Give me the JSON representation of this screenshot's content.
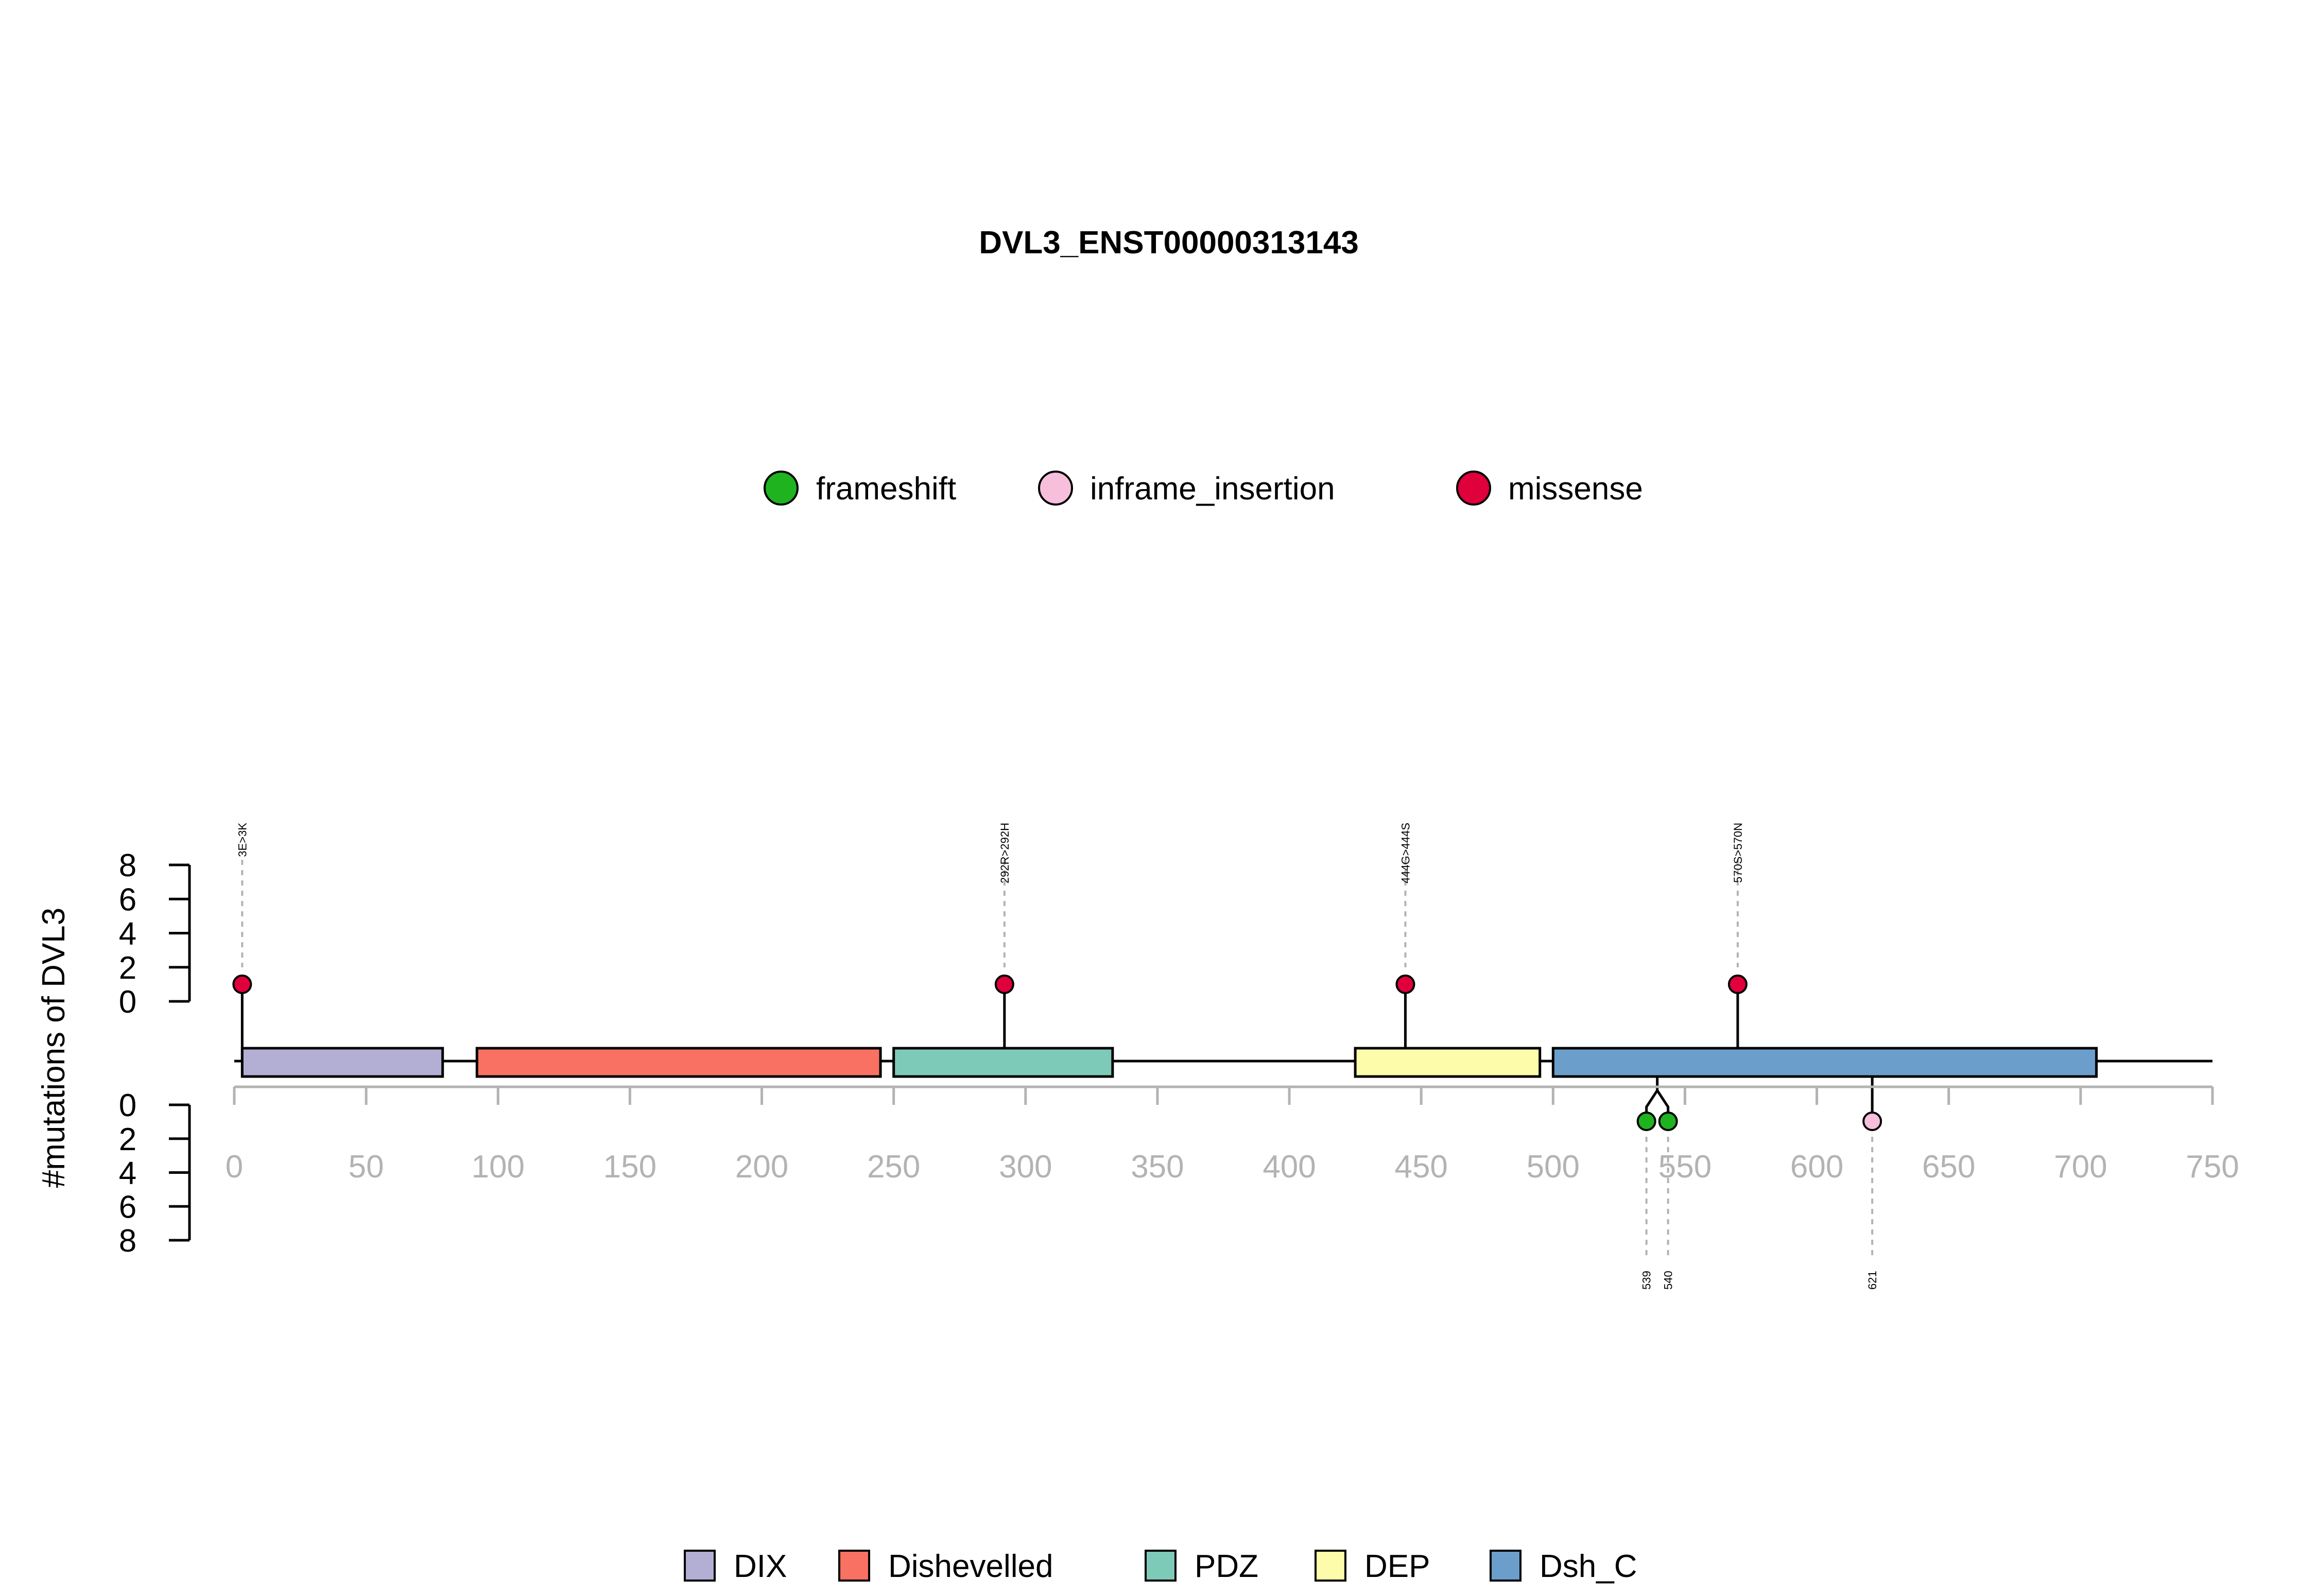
{
  "chart_data": {
    "type": "lollipop",
    "title": "DVL3_ENST00000313143",
    "ylabel": "#mutations of DVL3",
    "xlim": [
      0,
      750
    ],
    "x_ticks": [
      0,
      50,
      100,
      150,
      200,
      250,
      300,
      350,
      400,
      450,
      500,
      550,
      600,
      650,
      700,
      750
    ],
    "y_ticks_top": [
      0,
      2,
      4,
      6,
      8
    ],
    "y_ticks_bottom": [
      0,
      2,
      4,
      6,
      8
    ],
    "ylim_top": [
      0,
      8
    ],
    "ylim_bottom": [
      0,
      8
    ],
    "mutation_legend": [
      {
        "name": "frameshift",
        "color": "#1fb31f"
      },
      {
        "name": "inframe_insertion",
        "color": "#f7bfdc"
      },
      {
        "name": "missense",
        "color": "#e0003c"
      }
    ],
    "domain_legend": [
      {
        "name": "DIX",
        "color": "#b3aed3"
      },
      {
        "name": "Dishevelled",
        "color": "#f87162"
      },
      {
        "name": "PDZ",
        "color": "#7dcab8"
      },
      {
        "name": "DEP",
        "color": "#fcfcaa"
      },
      {
        "name": "Dsh_C",
        "color": "#6c9ecb"
      }
    ],
    "domains": [
      {
        "name": "DIX",
        "start": 3,
        "end": 79,
        "color": "#b3aed3"
      },
      {
        "name": "Dishevelled",
        "start": 92,
        "end": 245,
        "color": "#f87162"
      },
      {
        "name": "PDZ",
        "start": 250,
        "end": 333,
        "color": "#7dcab8"
      },
      {
        "name": "DEP",
        "start": 425,
        "end": 495,
        "color": "#fcfcaa"
      },
      {
        "name": "Dsh_C",
        "start": 500,
        "end": 706,
        "color": "#6c9ecb"
      }
    ],
    "mutations_top": [
      {
        "position": 3,
        "count": 1,
        "type": "missense",
        "label": "3E>3K"
      },
      {
        "position": 292,
        "count": 1,
        "type": "missense",
        "label": "292R>292H"
      },
      {
        "position": 444,
        "count": 1,
        "type": "missense",
        "label": "444G>444S"
      },
      {
        "position": 570,
        "count": 1,
        "type": "missense",
        "label": "570S>570N"
      }
    ],
    "mutations_bottom": [
      {
        "position": 539,
        "count": 1,
        "type": "frameshift",
        "label": "539"
      },
      {
        "position": 540,
        "count": 1,
        "type": "frameshift",
        "label": "540"
      },
      {
        "position": 621,
        "count": 1,
        "type": "inframe_insertion",
        "label": "621"
      }
    ]
  }
}
